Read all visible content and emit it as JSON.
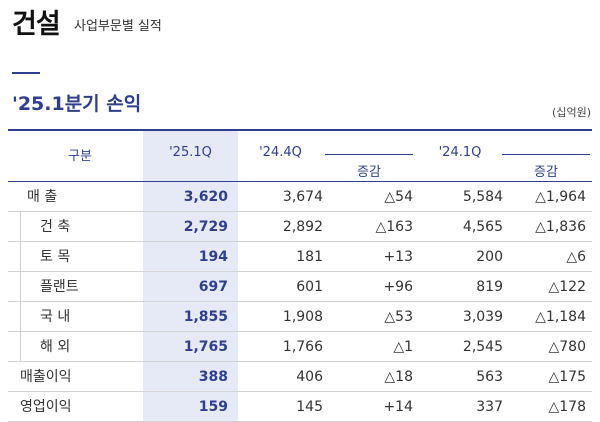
{
  "page": {
    "title": "건설",
    "subtitle": "사업부문별 실적",
    "section_title": "'25.1분기 손익",
    "unit": "(십억원)"
  },
  "table": {
    "headers": {
      "category": "구분",
      "q1_25": "'25.1Q",
      "q4_24": "'24.4Q",
      "qoq_change": "증감",
      "q1_24": "'24.1Q",
      "yoy_change": "증감"
    },
    "rows": [
      {
        "label": "매 출",
        "q1_25": "3,620",
        "q4_24": "3,674",
        "qoq_change": "△54",
        "q1_24": "5,584",
        "yoy_change": "△1,964"
      },
      {
        "label": "건 축",
        "q1_25": "2,729",
        "q4_24": "2,892",
        "qoq_change": "△163",
        "q1_24": "4,565",
        "yoy_change": "△1,836"
      },
      {
        "label": "토 목",
        "q1_25": "194",
        "q4_24": "181",
        "qoq_change": "+13",
        "q1_24": "200",
        "yoy_change": "△6"
      },
      {
        "label": "플랜트",
        "q1_25": "697",
        "q4_24": "601",
        "qoq_change": "+96",
        "q1_24": "819",
        "yoy_change": "△122"
      },
      {
        "label": "국 내",
        "q1_25": "1,855",
        "q4_24": "1,908",
        "qoq_change": "△53",
        "q1_24": "3,039",
        "yoy_change": "△1,184"
      },
      {
        "label": "해 외",
        "q1_25": "1,765",
        "q4_24": "1,766",
        "qoq_change": "△1",
        "q1_24": "2,545",
        "yoy_change": "△780"
      },
      {
        "label": "매출이익",
        "q1_25": "388",
        "q4_24": "406",
        "qoq_change": "△18",
        "q1_24": "563",
        "yoy_change": "△175"
      },
      {
        "label": "영업이익",
        "q1_25": "159",
        "q4_24": "145",
        "qoq_change": "+14",
        "q1_24": "337",
        "yoy_change": "△178"
      }
    ]
  },
  "colors": {
    "accent": "#2e3f8f",
    "highlight_column": "#e6e9f6",
    "row_divider": "#d3d3d3"
  }
}
